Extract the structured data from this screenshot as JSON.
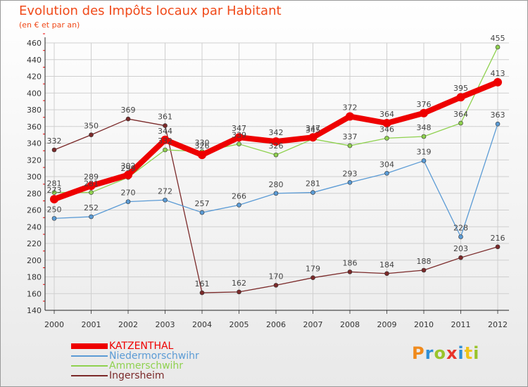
{
  "title": "Evolution des Impôts locaux par Habitant",
  "subtitle": "(en € et par an)",
  "logo": {
    "text": "Proxiti",
    "letter_colors": [
      "#f08a1c",
      "#2f8fd6",
      "#9ac42b",
      "#e8342b",
      "#2f8fd6",
      "#f0c419",
      "#9ac42b"
    ]
  },
  "chart_data": {
    "type": "line",
    "title": "Evolution des Impôts locaux par Habitant",
    "subtitle": "(en € et par an)",
    "x": [
      "2000",
      "2001",
      "2002",
      "2003",
      "2004",
      "2005",
      "2006",
      "2007",
      "2008",
      "2009",
      "2010",
      "2011",
      "2012"
    ],
    "ylim": [
      140,
      460
    ],
    "yticks": [
      140,
      160,
      180,
      200,
      220,
      240,
      260,
      280,
      300,
      320,
      340,
      360,
      380,
      400,
      420,
      440,
      460
    ],
    "grid": true,
    "legend_position": "bottom-left",
    "series": [
      {
        "name": "KATZENTHAL",
        "color": "#ee0000",
        "values": [
          273,
          289,
          302,
          344,
          326,
          347,
          342,
          347,
          372,
          364,
          376,
          395,
          413
        ],
        "labels": [
          "273",
          "289",
          "302",
          "344",
          "326",
          "347",
          "342",
          "347",
          "372",
          "364",
          "376",
          "395",
          "413"
        ]
      },
      {
        "name": "Niedermorschwihr",
        "color": "#5b9bd5",
        "values": [
          250,
          252,
          270,
          272,
          257,
          266,
          280,
          281,
          293,
          304,
          319,
          228,
          363
        ],
        "labels": [
          "250",
          "252",
          "270",
          "272",
          "257",
          "266",
          "280",
          "281",
          "293",
          "304",
          "319",
          "228",
          "363"
        ]
      },
      {
        "name": "Ammerschwihr",
        "color": "#8fd14f",
        "values": [
          281,
          281,
          299,
          332,
          330,
          339,
          326,
          345,
          337,
          346,
          348,
          364,
          455
        ],
        "labels": [
          "281",
          "281",
          "299",
          "332",
          "330",
          "339",
          "326",
          "345",
          "337",
          "346",
          "348",
          "364",
          "455"
        ]
      },
      {
        "name": "Ingersheim",
        "color": "#7b2a2a",
        "values": [
          332,
          350,
          369,
          361,
          161,
          162,
          170,
          179,
          186,
          184,
          188,
          203,
          216
        ],
        "labels": [
          "332",
          "350",
          "369",
          "361",
          "161",
          "162",
          "170",
          "179",
          "186",
          "184",
          "188",
          "203",
          "216"
        ]
      }
    ]
  }
}
